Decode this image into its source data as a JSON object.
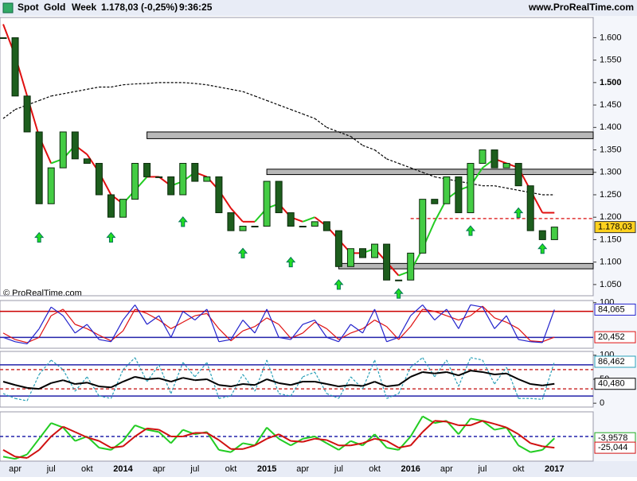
{
  "chart_data": [
    {
      "type": "candlestick",
      "header": {
        "symbol": "Spot",
        "name": "Gold",
        "period": "Week",
        "quote": "1.178,03 (-0,25%)",
        "time": "9:36:25",
        "site": "www.ProRealTime.com"
      },
      "copyright": "© ProRealTime.com",
      "close": [
        1.6,
        1.47,
        1.39,
        1.23,
        1.31,
        1.39,
        1.33,
        1.32,
        1.25,
        1.2,
        1.24,
        1.32,
        1.29,
        1.29,
        1.25,
        1.32,
        1.28,
        1.29,
        1.21,
        1.17,
        1.18,
        1.18,
        1.28,
        1.21,
        1.18,
        1.18,
        1.19,
        1.17,
        1.09,
        1.13,
        1.11,
        1.14,
        1.06,
        1.06,
        1.12,
        1.24,
        1.23,
        1.29,
        1.21,
        1.32,
        1.35,
        1.31,
        1.32,
        1.27,
        1.17,
        1.15,
        1.17803
      ],
      "series": [
        {
          "color": "#e01010",
          "rise_color": "#22cc22",
          "values": [
            1.63,
            1.56,
            1.47,
            1.38,
            1.32,
            1.33,
            1.36,
            1.34,
            1.3,
            1.25,
            1.23,
            1.26,
            1.29,
            1.29,
            1.27,
            1.28,
            1.3,
            1.29,
            1.26,
            1.22,
            1.19,
            1.19,
            1.22,
            1.23,
            1.2,
            1.19,
            1.2,
            1.18,
            1.15,
            1.12,
            1.12,
            1.13,
            1.1,
            1.07,
            1.08,
            1.13,
            1.19,
            1.24,
            1.26,
            1.27,
            1.31,
            1.33,
            1.32,
            1.31,
            1.26,
            1.21,
            1.21
          ]
        },
        {
          "color": "#000000",
          "dashed": true,
          "values": [
            1.42,
            1.44,
            1.45,
            1.46,
            1.47,
            1.475,
            1.48,
            1.485,
            1.49,
            1.49,
            1.495,
            1.497,
            1.498,
            1.5,
            1.5,
            1.5,
            1.498,
            1.495,
            1.49,
            1.485,
            1.48,
            1.47,
            1.46,
            1.45,
            1.44,
            1.43,
            1.42,
            1.4,
            1.39,
            1.38,
            1.36,
            1.35,
            1.33,
            1.32,
            1.31,
            1.3,
            1.29,
            1.285,
            1.28,
            1.275,
            1.27,
            1.27,
            1.265,
            1.26,
            1.255,
            1.25,
            1.25
          ]
        }
      ],
      "zones": [
        {
          "low": 1.375,
          "high": 1.39,
          "start": 12
        },
        {
          "low": 1.295,
          "high": 1.307,
          "start": 22
        },
        {
          "low": 1.085,
          "high": 1.097,
          "start": 28
        }
      ],
      "levels": [
        {
          "value": 1.197,
          "start": 34,
          "color": "#e03030"
        }
      ],
      "arrows": [
        {
          "x": 3,
          "y": 1.155
        },
        {
          "x": 9,
          "y": 1.155
        },
        {
          "x": 15,
          "y": 1.19
        },
        {
          "x": 20,
          "y": 1.12
        },
        {
          "x": 24,
          "y": 1.1
        },
        {
          "x": 28,
          "y": 1.05
        },
        {
          "x": 33,
          "y": 1.03
        },
        {
          "x": 39,
          "y": 1.17
        },
        {
          "x": 43,
          "y": 1.21
        },
        {
          "x": 45,
          "y": 1.13
        }
      ],
      "ylim": [
        1.025,
        1.645
      ],
      "yticks": [
        {
          "value": 1.05,
          "label": "1.050"
        },
        {
          "value": 1.1,
          "label": "1.100"
        },
        {
          "value": 1.15,
          "label": "1.150"
        },
        {
          "value": 1.2,
          "label": "1.200"
        },
        {
          "value": 1.25,
          "label": "1.250"
        },
        {
          "value": 1.3,
          "label": "1.300"
        },
        {
          "value": 1.35,
          "label": "1.350"
        },
        {
          "value": 1.4,
          "label": "1.400"
        },
        {
          "value": 1.45,
          "label": "1.450"
        },
        {
          "value": 1.5,
          "label": "1.500"
        },
        {
          "value": 1.55,
          "label": "1.550"
        },
        {
          "value": 1.6,
          "label": "1.600"
        }
      ],
      "major_tick": 1.5,
      "last_labels": [
        {
          "value": 1.17803,
          "label": "1.178,03",
          "color": "#ffd21f"
        }
      ]
    },
    {
      "type": "line",
      "series": [
        {
          "color": "#e01010",
          "values": [
            30,
            15,
            8,
            20,
            70,
            85,
            50,
            40,
            25,
            12,
            35,
            85,
            75,
            60,
            40,
            55,
            70,
            75,
            40,
            12,
            35,
            45,
            65,
            50,
            18,
            30,
            55,
            40,
            15,
            30,
            40,
            60,
            45,
            15,
            45,
            85,
            80,
            70,
            60,
            70,
            92,
            65,
            55,
            40,
            12,
            10,
            20.452
          ]
        },
        {
          "color": "#2222cc",
          "values": [
            20,
            10,
            5,
            40,
            90,
            70,
            30,
            50,
            15,
            10,
            60,
            95,
            50,
            70,
            20,
            80,
            60,
            85,
            10,
            15,
            60,
            30,
            85,
            20,
            15,
            50,
            60,
            20,
            10,
            50,
            30,
            85,
            10,
            20,
            70,
            95,
            60,
            85,
            40,
            95,
            90,
            40,
            70,
            15,
            10,
            8,
            84.065
          ]
        }
      ],
      "levels": [
        {
          "value": 80,
          "color": "#cc0000"
        },
        {
          "value": 20,
          "color": "#2222aa"
        }
      ],
      "ylim": [
        -5,
        105
      ],
      "yticks": [
        100
      ],
      "last_labels": [
        {
          "value": 84.065,
          "label": "84,065",
          "color": "#2222cc"
        },
        {
          "value": 20.452,
          "label": "20,452",
          "color": "#e01010"
        }
      ]
    },
    {
      "type": "line",
      "series": [
        {
          "color": "#2aa0b8",
          "dashed": true,
          "values": [
            20,
            10,
            5,
            60,
            90,
            70,
            25,
            55,
            15,
            10,
            70,
            95,
            45,
            80,
            20,
            85,
            55,
            85,
            10,
            15,
            60,
            25,
            90,
            20,
            15,
            55,
            65,
            20,
            10,
            55,
            30,
            90,
            10,
            20,
            75,
            95,
            55,
            90,
            35,
            95,
            90,
            40,
            75,
            10,
            10,
            8,
            86.462
          ]
        },
        {
          "color": "#000000",
          "width": 2,
          "values": [
            45,
            38,
            32,
            30,
            42,
            48,
            40,
            43,
            35,
            33,
            45,
            55,
            50,
            52,
            45,
            53,
            48,
            50,
            38,
            35,
            40,
            38,
            50,
            42,
            38,
            45,
            45,
            40,
            35,
            38,
            36,
            45,
            35,
            38,
            55,
            65,
            62,
            65,
            58,
            68,
            65,
            60,
            62,
            50,
            40,
            37,
            40.48
          ]
        }
      ],
      "levels": [
        {
          "value": 80,
          "color": "#2222aa"
        },
        {
          "value": 70,
          "color": "#cc3333",
          "dashed": true
        },
        {
          "value": 30,
          "color": "#cc3333",
          "dashed": true
        },
        {
          "value": 15,
          "color": "#2222aa"
        }
      ],
      "ylim": [
        -8,
        108
      ],
      "yticks": [
        100,
        50,
        0
      ],
      "last_labels": [
        {
          "value": 86.462,
          "label": "86,462",
          "color": "#2aa0b8"
        },
        {
          "value": 40.48,
          "label": "40,480",
          "color": "#000000"
        }
      ]
    },
    {
      "type": "line",
      "categories": [
        null,
        "apr",
        null,
        null,
        "jul",
        null,
        null,
        "okt",
        null,
        null,
        "2014",
        null,
        null,
        "apr",
        null,
        null,
        "jul",
        null,
        null,
        "okt",
        null,
        null,
        "2015",
        null,
        null,
        "apr",
        null,
        null,
        "jul",
        null,
        null,
        "okt",
        null,
        null,
        "2016",
        null,
        null,
        "apr",
        null,
        null,
        "jul",
        null,
        null,
        "okt",
        null,
        null,
        "2017"
      ],
      "series": [
        {
          "color": "#22cc22",
          "width": 2,
          "values": [
            -45,
            -50,
            -40,
            -5,
            30,
            20,
            -10,
            0,
            -25,
            -30,
            -10,
            25,
            15,
            10,
            -15,
            15,
            5,
            10,
            -30,
            -35,
            -15,
            -20,
            20,
            -5,
            -20,
            -5,
            0,
            -15,
            -30,
            -10,
            -20,
            5,
            -25,
            -30,
            0,
            45,
            30,
            35,
            5,
            40,
            35,
            15,
            20,
            -20,
            -35,
            -30,
            -3.9578
          ]
        },
        {
          "color": "#d01010",
          "width": 2,
          "values": [
            -30,
            -45,
            -48,
            -30,
            0,
            22,
            10,
            -2,
            -10,
            -25,
            -22,
            0,
            18,
            15,
            0,
            0,
            8,
            8,
            -8,
            -28,
            -28,
            -20,
            -5,
            5,
            -10,
            -12,
            -5,
            -8,
            -20,
            -20,
            -15,
            -5,
            -10,
            -25,
            -20,
            10,
            35,
            33,
            25,
            25,
            35,
            28,
            20,
            5,
            -15,
            -22,
            -25.044
          ]
        }
      ],
      "levels": [
        {
          "value": 0,
          "color": "#2222aa",
          "dashed": true
        }
      ],
      "ylim": [
        -55,
        55
      ],
      "last_labels": [
        {
          "value": -3.9578,
          "label": "-3,9578",
          "color": "#22aa22"
        },
        {
          "value": -25.044,
          "label": "-25,044",
          "color": "#d01010"
        }
      ]
    }
  ]
}
